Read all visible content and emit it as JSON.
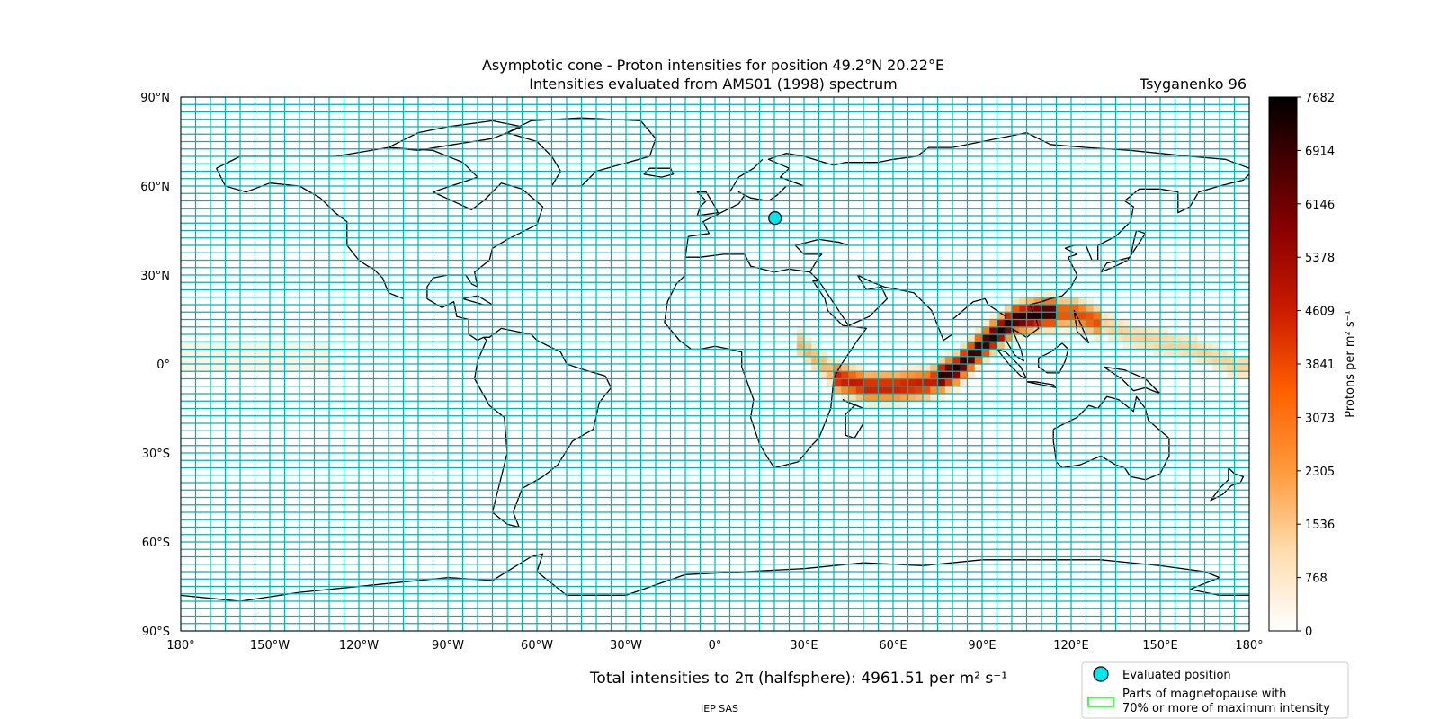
{
  "title": {
    "line1": "Asymptotic cone - Proton intensities for position 49.2°N 20.22°E",
    "line2": "Intensities evaluated from AMS01 (1998) spectrum",
    "model": "Tsyganenko 96"
  },
  "map": {
    "lon_range": [
      -180,
      180
    ],
    "lat_range": [
      -90,
      90
    ],
    "lon_ticks": [
      "180°",
      "150°W",
      "120°W",
      "90°W",
      "60°W",
      "30°W",
      "0°",
      "30°E",
      "60°E",
      "90°E",
      "120°E",
      "150°E",
      "180°"
    ],
    "lat_ticks": [
      "90°N",
      "60°N",
      "30°N",
      "0°",
      "30°S",
      "60°S",
      "90°S"
    ],
    "grid_step_lon_deg": 5,
    "grid_step_lat_deg": 5,
    "grid_color": "#00b3b3",
    "evaluated_position": {
      "lat": 49.2,
      "lon": 20.22,
      "color": "#00e5ee"
    }
  },
  "colorbar": {
    "label": "Protons per m² s⁻¹",
    "ticks": [
      "0",
      "768",
      "1536",
      "2305",
      "3073",
      "3841",
      "4609",
      "5378",
      "6146",
      "6914",
      "7682"
    ],
    "min": 0,
    "max": 7682,
    "colormap": "gist_heat_r"
  },
  "footer": {
    "total_text": "Total intensities to 2π (halfsphere): 4961.51 per m² s⁻¹",
    "credit": "IEP SAS"
  },
  "legend": {
    "evaluated_label": "Evaluated position",
    "magnetopause_label_line1": "Parts of magnetopause with",
    "magnetopause_label_line2": "70% or more of maximum intensity",
    "magnetopause_color": "#00ff00"
  }
}
